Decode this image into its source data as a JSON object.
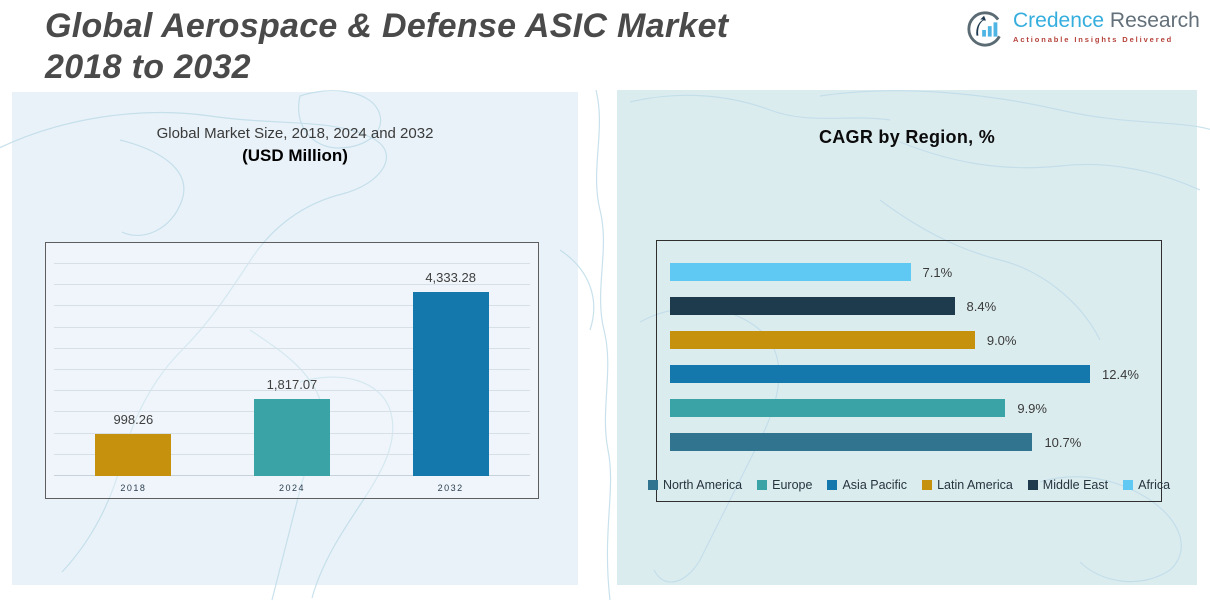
{
  "header": {
    "title_line1": "Global Aerospace & Defense ASIC Market",
    "title_line2": "2018 to 2032"
  },
  "logo": {
    "brand_primary": "Credence",
    "brand_secondary": "Research",
    "tagline": "Actionable Insights Delivered"
  },
  "chart_data": [
    {
      "type": "bar",
      "title": "Global Market Size, 2018, 2024 and 2032",
      "subtitle": "(USD Million)",
      "categories": [
        "2018",
        "2024",
        "2032"
      ],
      "values": [
        998.26,
        1817.07,
        4333.28
      ],
      "value_labels": [
        "998.26",
        "1,817.07",
        "4,333.28"
      ],
      "bar_colors": [
        "#C6920E",
        "#3AA3A5",
        "#1478AC"
      ],
      "ylabel": "USD Million",
      "ylim": [
        0,
        5000
      ],
      "gridlines": 11,
      "grid": true,
      "legend_position": "none"
    },
    {
      "type": "bar",
      "orientation": "horizontal",
      "title": "CAGR by Region, %",
      "categories": [
        "Africa",
        "Middle East",
        "Latin America",
        "Asia Pacific",
        "Europe",
        "North America"
      ],
      "values": [
        7.1,
        8.4,
        9.0,
        12.4,
        9.9,
        10.7
      ],
      "value_labels": [
        "7.1%",
        "8.4%",
        "9.0%",
        "12.4%",
        "9.9%",
        "10.7%"
      ],
      "bar_colors": [
        "#5FC9F4",
        "#1E3B4D",
        "#C6920E",
        "#1478AC",
        "#3AA3A5",
        "#30748F"
      ],
      "xlim": [
        0,
        14.2
      ],
      "grid": false,
      "legend_position": "bottom",
      "legend": [
        {
          "label": "North America",
          "color": "#30748F"
        },
        {
          "label": "Europe",
          "color": "#3AA3A5"
        },
        {
          "label": "Asia Pacific",
          "color": "#1478AC"
        },
        {
          "label": "Latin America",
          "color": "#C6920E"
        },
        {
          "label": "Middle East",
          "color": "#1E3B4D"
        },
        {
          "label": "Africa",
          "color": "#5FC9F4"
        }
      ]
    }
  ],
  "colors": {
    "title_text": "#4A4A4A",
    "brand_primary": "#35AEDE",
    "brand_secondary": "#63707A",
    "tagline": "#B5423A",
    "left_panel_bg": "#E9F2F8",
    "right_panel_bg": "#DBECEF",
    "map_line": "#BFDCE9"
  }
}
